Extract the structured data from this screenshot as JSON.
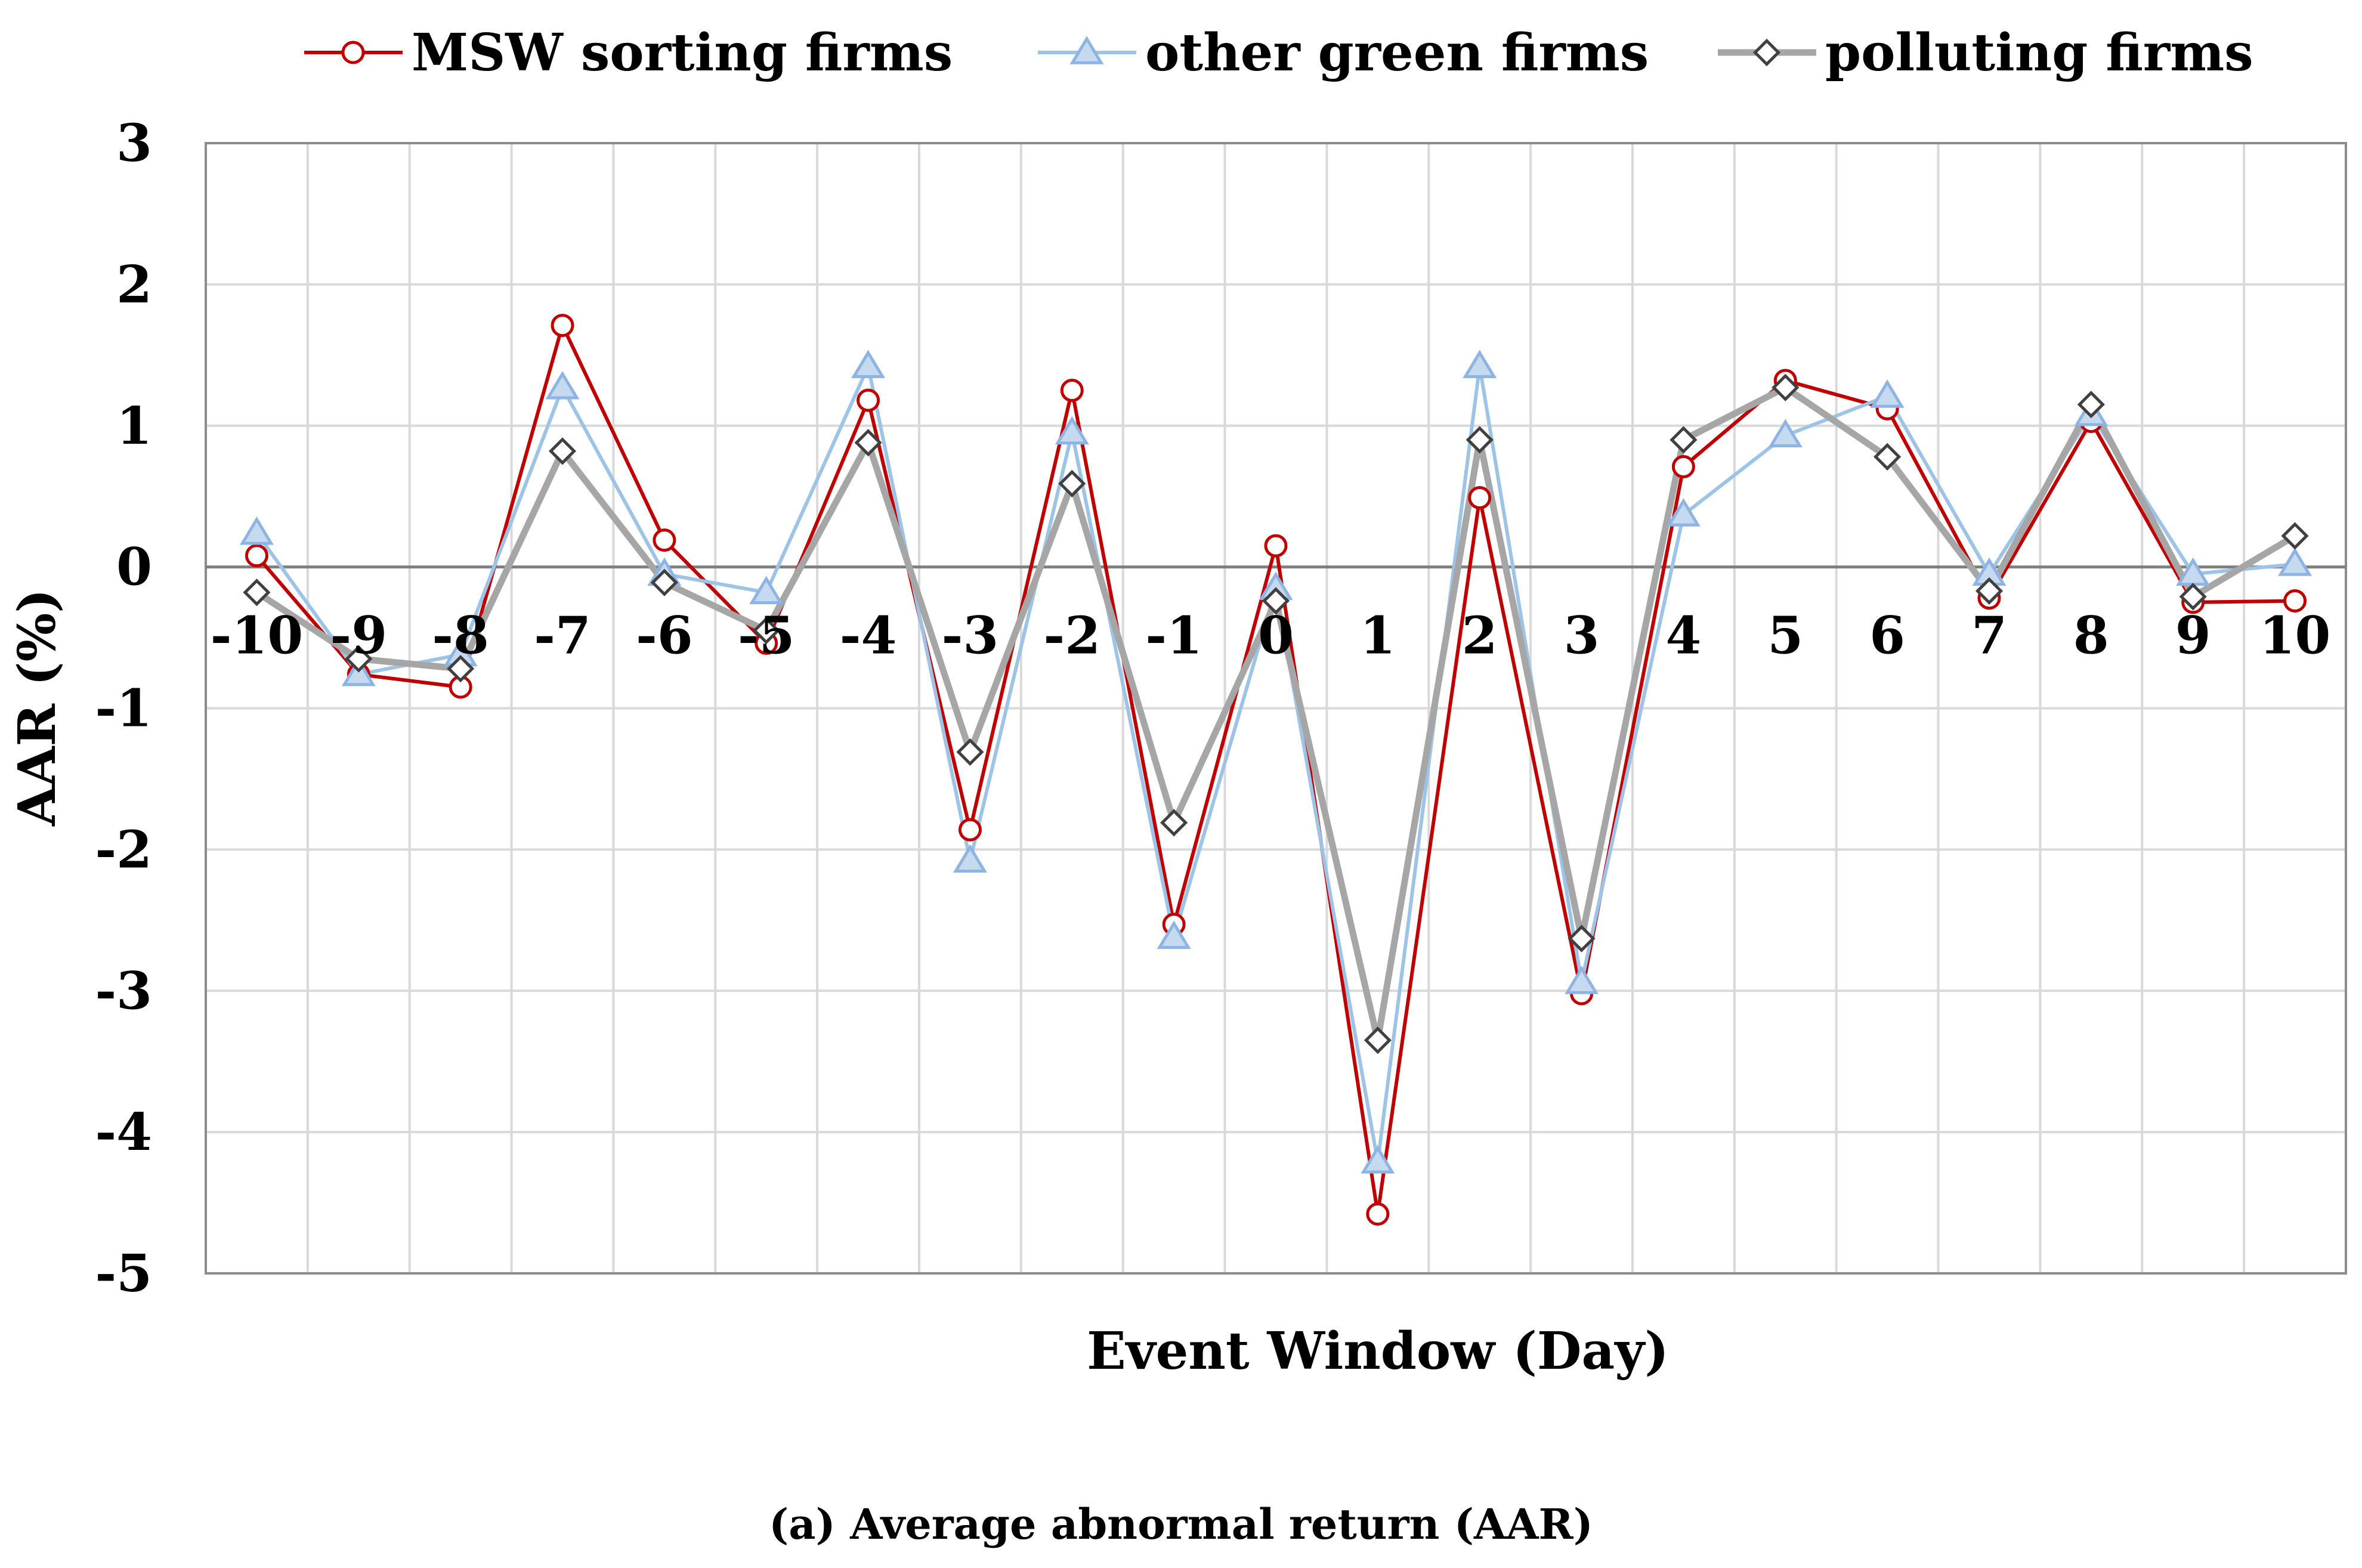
{
  "chart_data": {
    "type": "line",
    "title": "",
    "caption": "(a) Average abnormal return (AAR)",
    "xlabel": "Event Window (Day)",
    "ylabel": "AAR (%)",
    "ylim": [
      -5,
      3
    ],
    "yticks": [
      "3",
      "2",
      "1",
      "0",
      "-1",
      "-2",
      "-3",
      "-4",
      "-5"
    ],
    "ytick_values": [
      3,
      2,
      1,
      0,
      -1,
      -2,
      -3,
      -4,
      -5
    ],
    "grid": true,
    "legend_position": "top",
    "categories": [
      "-10",
      "-9",
      "-8",
      "-7",
      "-6",
      "-5",
      "-4",
      "-3",
      "-2",
      "-1",
      "0",
      "1",
      "2",
      "3",
      "4",
      "5",
      "6",
      "7",
      "8",
      "9",
      "10"
    ],
    "series": [
      {
        "name": "MSW sorting firms",
        "color": "#c00000",
        "marker": "circle",
        "values": [
          0.08,
          -0.76,
          -0.85,
          1.71,
          0.19,
          -0.54,
          1.18,
          -1.86,
          1.25,
          -2.53,
          0.15,
          -4.58,
          0.49,
          -3.02,
          0.71,
          1.32,
          1.12,
          -0.22,
          1.03,
          -0.25,
          -0.24
        ]
      },
      {
        "name": "other green firms",
        "color": "#9dc3e6",
        "marker": "triangle",
        "values": [
          0.24,
          -0.76,
          -0.62,
          1.27,
          -0.05,
          -0.18,
          1.42,
          -2.08,
          0.95,
          -2.62,
          -0.15,
          -4.21,
          1.42,
          -2.94,
          0.37,
          0.93,
          1.21,
          -0.05,
          1.08,
          -0.05,
          0.02
        ]
      },
      {
        "name": "polluting firms",
        "color": "#a6a6a6",
        "marker": "diamond",
        "values": [
          -0.18,
          -0.65,
          -0.72,
          0.82,
          -0.11,
          -0.45,
          0.88,
          -1.31,
          0.59,
          -1.81,
          -0.24,
          -3.35,
          0.9,
          -2.63,
          0.9,
          1.27,
          0.78,
          -0.17,
          1.15,
          -0.21,
          0.22
        ]
      }
    ]
  }
}
